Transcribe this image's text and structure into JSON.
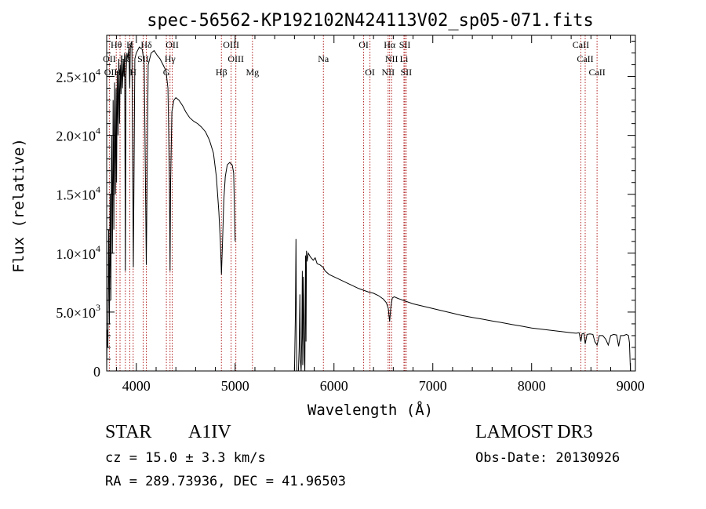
{
  "chart_data": {
    "type": "line",
    "title": "spec-56562-KP192102N424113V02_sp05-071.fits",
    "xlabel": "Wavelength (Å)",
    "ylabel": "Flux (relative)",
    "xlim": [
      3700,
      9050
    ],
    "ylim": [
      0,
      28500
    ],
    "x_ticks": [
      4000,
      5000,
      6000,
      7000,
      8000,
      9000
    ],
    "x_tick_labels": [
      "4000",
      "5000",
      "6000",
      "7000",
      "8000",
      "9000"
    ],
    "y_ticks": [
      {
        "value": 0,
        "mantissa": "0",
        "exp": ""
      },
      {
        "value": 5000,
        "mantissa": "5.0×10",
        "exp": "3"
      },
      {
        "value": 10000,
        "mantissa": "1.0×10",
        "exp": "4"
      },
      {
        "value": 15000,
        "mantissa": "1.5×10",
        "exp": "4"
      },
      {
        "value": 20000,
        "mantissa": "2.0×10",
        "exp": "4"
      },
      {
        "value": 25000,
        "mantissa": "2.5×10",
        "exp": "4"
      }
    ],
    "series": [
      {
        "name": "flux",
        "points": [
          [
            3700,
            0
          ],
          [
            3705,
            3500
          ],
          [
            3712,
            2000
          ],
          [
            3720,
            12000
          ],
          [
            3728,
            4000
          ],
          [
            3735,
            15000
          ],
          [
            3742,
            6000
          ],
          [
            3750,
            20000
          ],
          [
            3758,
            10000
          ],
          [
            3765,
            23000
          ],
          [
            3772,
            12000
          ],
          [
            3780,
            24500
          ],
          [
            3788,
            15000
          ],
          [
            3795,
            24000
          ],
          [
            3800,
            16000
          ],
          [
            3807,
            25500
          ],
          [
            3815,
            20000
          ],
          [
            3822,
            26500
          ],
          [
            3830,
            21000
          ],
          [
            3837,
            26000
          ],
          [
            3845,
            23500
          ],
          [
            3852,
            26800
          ],
          [
            3860,
            24000
          ],
          [
            3868,
            26500
          ],
          [
            3875,
            25000
          ],
          [
            3882,
            27000
          ],
          [
            3889,
            8500
          ],
          [
            3895,
            25000
          ],
          [
            3905,
            27000
          ],
          [
            3915,
            26500
          ],
          [
            3925,
            27500
          ],
          [
            3933,
            24000
          ],
          [
            3940,
            27500
          ],
          [
            3955,
            28000
          ],
          [
            3970,
            8800
          ],
          [
            3985,
            26500
          ],
          [
            4000,
            27000
          ],
          [
            4030,
            27500
          ],
          [
            4060,
            27300
          ],
          [
            4080,
            26000
          ],
          [
            4101,
            9000
          ],
          [
            4120,
            26000
          ],
          [
            4150,
            27000
          ],
          [
            4180,
            27200
          ],
          [
            4210,
            26800
          ],
          [
            4240,
            26500
          ],
          [
            4270,
            26000
          ],
          [
            4300,
            25500
          ],
          [
            4320,
            24000
          ],
          [
            4335,
            16000
          ],
          [
            4341,
            8500
          ],
          [
            4347,
            16000
          ],
          [
            4360,
            22000
          ],
          [
            4380,
            23000
          ],
          [
            4400,
            23200
          ],
          [
            4430,
            23000
          ],
          [
            4470,
            22500
          ],
          [
            4500,
            22000
          ],
          [
            4540,
            21500
          ],
          [
            4580,
            21200
          ],
          [
            4620,
            21000
          ],
          [
            4660,
            20700
          ],
          [
            4700,
            20300
          ],
          [
            4740,
            19600
          ],
          [
            4780,
            18500
          ],
          [
            4810,
            16500
          ],
          [
            4835,
            13500
          ],
          [
            4850,
            11000
          ],
          [
            4861,
            8200
          ],
          [
            4872,
            11000
          ],
          [
            4885,
            14500
          ],
          [
            4900,
            16500
          ],
          [
            4920,
            17500
          ],
          [
            4945,
            17700
          ],
          [
            4970,
            17500
          ],
          [
            4985,
            16800
          ],
          [
            4995,
            13000
          ],
          [
            5000,
            11000
          ]
        ]
      },
      {
        "name": "flux",
        "points": [
          [
            5600,
            0
          ],
          [
            5610,
            5000
          ],
          [
            5615,
            11200
          ],
          [
            5620,
            3000
          ],
          [
            5625,
            0
          ],
          [
            5640,
            0
          ],
          [
            5648,
            2000
          ],
          [
            5655,
            6500
          ],
          [
            5660,
            1000
          ],
          [
            5668,
            0
          ],
          [
            5675,
            3000
          ],
          [
            5680,
            8500
          ],
          [
            5684,
            500
          ],
          [
            5690,
            8000
          ],
          [
            5700,
            1000
          ],
          [
            5705,
            0
          ],
          [
            5712,
            9800
          ],
          [
            5717,
            2500
          ],
          [
            5722,
            10200
          ],
          [
            5728,
            9300
          ],
          [
            5740,
            10000
          ],
          [
            5760,
            9700
          ],
          [
            5790,
            9400
          ],
          [
            5810,
            9600
          ],
          [
            5830,
            9100
          ],
          [
            5860,
            9000
          ],
          [
            5890,
            8800
          ],
          [
            5910,
            8500
          ],
          [
            5950,
            8200
          ],
          [
            6000,
            8000
          ],
          [
            6050,
            7800
          ],
          [
            6100,
            7600
          ],
          [
            6150,
            7400
          ],
          [
            6200,
            7200
          ],
          [
            6250,
            7000
          ],
          [
            6300,
            6850
          ],
          [
            6350,
            6700
          ],
          [
            6400,
            6600
          ],
          [
            6450,
            6400
          ],
          [
            6500,
            6100
          ],
          [
            6530,
            5800
          ],
          [
            6550,
            5300
          ],
          [
            6563,
            4200
          ],
          [
            6575,
            5400
          ],
          [
            6590,
            6200
          ],
          [
            6610,
            6300
          ],
          [
            6650,
            6150
          ],
          [
            6700,
            6000
          ],
          [
            6800,
            5700
          ],
          [
            6900,
            5500
          ],
          [
            7000,
            5300
          ],
          [
            7100,
            5100
          ],
          [
            7200,
            4900
          ],
          [
            7300,
            4700
          ],
          [
            7400,
            4550
          ],
          [
            7500,
            4400
          ],
          [
            7600,
            4250
          ],
          [
            7700,
            4100
          ],
          [
            7800,
            3950
          ],
          [
            7900,
            3800
          ],
          [
            8000,
            3650
          ],
          [
            8100,
            3550
          ],
          [
            8200,
            3450
          ],
          [
            8300,
            3350
          ],
          [
            8400,
            3250
          ],
          [
            8450,
            3200
          ],
          [
            8480,
            3250
          ],
          [
            8498,
            2500
          ],
          [
            8510,
            3150
          ],
          [
            8530,
            3200
          ],
          [
            8542,
            2300
          ],
          [
            8560,
            3100
          ],
          [
            8590,
            3150
          ],
          [
            8620,
            3100
          ],
          [
            8640,
            2500
          ],
          [
            8662,
            2200
          ],
          [
            8685,
            3000
          ],
          [
            8720,
            3000
          ],
          [
            8750,
            2700
          ],
          [
            8775,
            2200
          ],
          [
            8800,
            3000
          ],
          [
            8830,
            3100
          ],
          [
            8860,
            3050
          ],
          [
            8880,
            2100
          ],
          [
            8900,
            3000
          ],
          [
            8930,
            3000
          ],
          [
            8960,
            3100
          ],
          [
            8980,
            3000
          ],
          [
            8990,
            2400
          ],
          [
            8998,
            500
          ],
          [
            9000,
            0
          ]
        ]
      }
    ],
    "annotations": [
      {
        "label": "Hθ",
        "x": 3797,
        "row": 0
      },
      {
        "label": "K",
        "x": 3934,
        "row": 0
      },
      {
        "label": "Hδ",
        "x": 4101,
        "row": 0
      },
      {
        "label": "OII",
        "x": 4363,
        "row": 0
      },
      {
        "label": "OIII",
        "x": 4959,
        "row": 0
      },
      {
        "label": "OI",
        "x": 6300,
        "row": 0
      },
      {
        "label": "Hα",
        "x": 6563,
        "row": 0
      },
      {
        "label": "SII",
        "x": 6717,
        "row": 0
      },
      {
        "label": "CaII",
        "x": 8498,
        "row": 0
      },
      {
        "label": "OII",
        "x": 3727,
        "row": 1
      },
      {
        "label": "Hε",
        "x": 3889,
        "row": 1
      },
      {
        "label": "SII",
        "x": 4069,
        "row": 1
      },
      {
        "label": "Hγ",
        "x": 4341,
        "row": 1
      },
      {
        "label": "OIII",
        "x": 5007,
        "row": 1
      },
      {
        "label": "Na",
        "x": 5893,
        "row": 1
      },
      {
        "label": "NII",
        "x": 6583,
        "row": 1
      },
      {
        "label": "Li",
        "x": 6708,
        "row": 1
      },
      {
        "label": "CaII",
        "x": 8542,
        "row": 1
      },
      {
        "label": "OII",
        "x": 3740,
        "row": 2
      },
      {
        "label": "Hη",
        "x": 3835,
        "row": 2
      },
      {
        "label": "H",
        "x": 3968,
        "row": 2
      },
      {
        "label": "G",
        "x": 4304,
        "row": 2
      },
      {
        "label": "Hβ",
        "x": 4861,
        "row": 2
      },
      {
        "label": "Mg",
        "x": 5175,
        "row": 2
      },
      {
        "label": "OI",
        "x": 6364,
        "row": 2
      },
      {
        "label": "NII",
        "x": 6548,
        "row": 2
      },
      {
        "label": "SII",
        "x": 6731,
        "row": 2
      },
      {
        "label": "CaII",
        "x": 8662,
        "row": 2
      }
    ],
    "marker_lines": [
      3727,
      3797,
      3835,
      3889,
      3934,
      3968,
      4069,
      4101,
      4304,
      4341,
      4363,
      4861,
      4959,
      5007,
      5175,
      5893,
      6300,
      6364,
      6548,
      6563,
      6583,
      6708,
      6717,
      6731,
      8498,
      8542,
      8662
    ],
    "grid": false,
    "legend": "none"
  },
  "info": {
    "object_class": "STAR",
    "subclass": "A1IV",
    "survey": "LAMOST DR3",
    "redshift": "cz = 15.0 ± 3.3 km/s",
    "obs_date": "Obs-Date: 20130926",
    "coords": "RA = 289.73936, DEC =  41.96503"
  }
}
